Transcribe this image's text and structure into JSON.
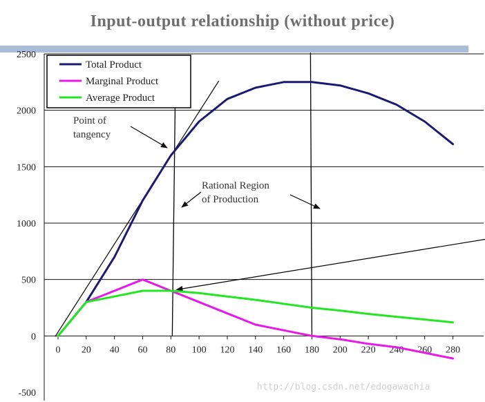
{
  "page": {
    "title": "Input-output relationship (without price)",
    "watermark": "http://blog.csdn.net/edogawachia"
  },
  "colors": {
    "title_bar": "#a9bcd8",
    "grid": "#111111"
  },
  "chart_data": {
    "type": "line",
    "title": "Input-output relationship (without price)",
    "xlabel": "",
    "ylabel": "",
    "xlim": [
      0,
      290
    ],
    "ylim": [
      -500,
      2500
    ],
    "x_ticks": [
      0,
      20,
      40,
      60,
      80,
      100,
      120,
      140,
      160,
      180,
      200,
      220,
      240,
      260,
      280
    ],
    "y_ticks": [
      -500,
      0,
      500,
      1000,
      1500,
      2000,
      2500
    ],
    "grid": "horizontal",
    "legend_position": "top-left",
    "series": [
      {
        "name": "Total Product",
        "color": "#1a1a70",
        "x": [
          0,
          20,
          40,
          60,
          80,
          100,
          120,
          140,
          160,
          180,
          200,
          220,
          240,
          260,
          280
        ],
        "values": [
          0,
          300,
          700,
          1200,
          1600,
          1900,
          2100,
          2200,
          2250,
          2250,
          2220,
          2150,
          2050,
          1900,
          1700
        ]
      },
      {
        "name": "Marginal Product",
        "color": "#e619e6",
        "x": [
          20,
          40,
          60,
          80,
          100,
          120,
          140,
          160,
          180,
          200,
          220,
          240,
          260,
          280
        ],
        "values": [
          300,
          400,
          500,
          400,
          300,
          200,
          100,
          50,
          0,
          -30,
          -70,
          -100,
          -150,
          -200
        ]
      },
      {
        "name": "Average Product",
        "color": "#22e622",
        "x": [
          0,
          20,
          40,
          60,
          80,
          100,
          120,
          140,
          160,
          180,
          200,
          220,
          240,
          260,
          280
        ],
        "values": [
          0,
          300,
          350,
          400,
          400,
          380,
          350,
          320,
          285,
          250,
          225,
          195,
          170,
          145,
          120
        ]
      }
    ],
    "annotations": [
      {
        "text": "Point of\ntangency"
      },
      {
        "text": "Rational Region\nof Production"
      }
    ]
  }
}
